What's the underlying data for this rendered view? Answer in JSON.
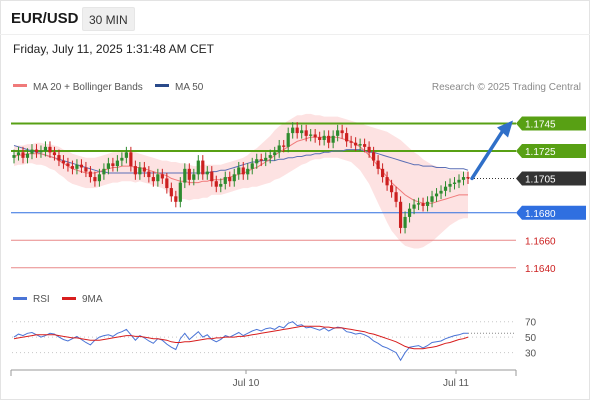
{
  "header": {
    "symbol": "EUR/USD",
    "timeframe": "30 MIN",
    "datetime": "Friday, July 11, 2025 1:31:48 AM CET"
  },
  "legend": {
    "ma20_label": "MA 20 + Bollinger Bands",
    "ma50_label": "MA 50",
    "credit": "Research © 2025 Trading Central",
    "rsi_label": "RSI",
    "ma9_label": "9MA"
  },
  "colors": {
    "up": "#2e8b2e",
    "down": "#cc2020",
    "bollinger_fill": "#fde2e2",
    "ma20": "#f07a7a",
    "ma50": "#5b6fb5",
    "resistance": "#58a014",
    "support": "#2f6fe0",
    "target_line": "#e88888",
    "target_text": "#cc2020",
    "current": "#333333",
    "arrow": "#2f6fc8",
    "rsi": "#4a74d6",
    "ma9": "#d81e1e"
  },
  "chart_data": [
    {
      "type": "candlestick",
      "title": "",
      "ylim": [
        1.1618,
        1.1765
      ],
      "x_ticks": [
        "Jul 10",
        "Jul 11"
      ],
      "levels": [
        {
          "value": 1.1745,
          "label": "1.1745",
          "kind": "resistance"
        },
        {
          "value": 1.1725,
          "label": "1.1725",
          "kind": "resistance"
        },
        {
          "value": 1.1705,
          "label": "1.1705",
          "kind": "current"
        },
        {
          "value": 1.168,
          "label": "1.1680",
          "kind": "support"
        },
        {
          "value": 1.166,
          "label": "1.1660",
          "kind": "target"
        },
        {
          "value": 1.164,
          "label": "1.1640",
          "kind": "target"
        }
      ],
      "projection": {
        "from": 1.1705,
        "to": 1.1745
      },
      "close": [
        1.1722,
        1.1724,
        1.172,
        1.1723,
        1.1726,
        1.1724,
        1.1725,
        1.1728,
        1.1724,
        1.1722,
        1.1718,
        1.1716,
        1.1714,
        1.1712,
        1.1715,
        1.1713,
        1.171,
        1.1706,
        1.1703,
        1.1708,
        1.1712,
        1.1716,
        1.1714,
        1.1718,
        1.172,
        1.1724,
        1.1714,
        1.1708,
        1.1713,
        1.171,
        1.1706,
        1.1703,
        1.1708,
        1.1705,
        1.1698,
        1.1692,
        1.1688,
        1.1702,
        1.1712,
        1.1704,
        1.1708,
        1.1718,
        1.1708,
        1.171,
        1.1703,
        1.1699,
        1.1701,
        1.1706,
        1.1703,
        1.1708,
        1.1713,
        1.1708,
        1.1712,
        1.1716,
        1.1719,
        1.1718,
        1.172,
        1.1722,
        1.1724,
        1.1729,
        1.1728,
        1.1738,
        1.1742,
        1.1738,
        1.174,
        1.1736,
        1.1737,
        1.1735,
        1.1733,
        1.1736,
        1.1731,
        1.1736,
        1.174,
        1.1738,
        1.1732,
        1.1731,
        1.1729,
        1.173,
        1.1728,
        1.1724,
        1.1718,
        1.1712,
        1.1706,
        1.17,
        1.1695,
        1.1688,
        1.1669,
        1.1677,
        1.1683,
        1.1686,
        1.1687,
        1.1685,
        1.1688,
        1.1692,
        1.1694,
        1.1696,
        1.1699,
        1.1701,
        1.1702,
        1.1704,
        1.1706,
        1.1705
      ],
      "ma20": [
        1.1721,
        1.1722,
        1.1722,
        1.1723,
        1.1723,
        1.1723,
        1.1723,
        1.1722,
        1.1721,
        1.172,
        1.1718,
        1.1716,
        1.1714,
        1.1712,
        1.1711,
        1.171,
        1.1709,
        1.1709,
        1.1709,
        1.171,
        1.1711,
        1.1712,
        1.1713,
        1.1713,
        1.1714,
        1.1714,
        1.1714,
        1.1713,
        1.1713,
        1.1712,
        1.1711,
        1.171,
        1.1709,
        1.1708,
        1.1707,
        1.1705,
        1.1704,
        1.1703,
        1.1703,
        1.1702,
        1.1702,
        1.1702,
        1.1703,
        1.1703,
        1.1704,
        1.1704,
        1.1704,
        1.1705,
        1.1706,
        1.1707,
        1.1708,
        1.1709,
        1.171,
        1.1712,
        1.1713,
        1.1715,
        1.1717,
        1.1719,
        1.1722,
        1.1724,
        1.1726,
        1.1728,
        1.173,
        1.1732,
        1.1733,
        1.1734,
        1.1735,
        1.1735,
        1.1735,
        1.1735,
        1.1735,
        1.1735,
        1.1735,
        1.1734,
        1.1733,
        1.1732,
        1.173,
        1.1728,
        1.1725,
        1.1722,
        1.1718,
        1.1714,
        1.171,
        1.1706,
        1.1702,
        1.1699,
        1.1696,
        1.1693,
        1.1691,
        1.1689,
        1.1688,
        1.1687,
        1.1687,
        1.1687,
        1.1688,
        1.1689,
        1.169,
        1.1691,
        1.1692,
        1.1693,
        1.1693,
        1.1693
      ],
      "bollinger_width": [
        0.0007,
        0.0007,
        0.0007,
        0.0007,
        0.0007,
        0.0008,
        0.0008,
        0.0008,
        0.0009,
        0.0009,
        0.001,
        0.001,
        0.0011,
        0.0011,
        0.0011,
        0.0011,
        0.0011,
        0.0011,
        0.0011,
        0.0011,
        0.0011,
        0.0011,
        0.0011,
        0.0011,
        0.0011,
        0.0011,
        0.0011,
        0.0011,
        0.001,
        0.001,
        0.001,
        0.001,
        0.001,
        0.001,
        0.0011,
        0.0012,
        0.0013,
        0.0013,
        0.0013,
        0.0013,
        0.0012,
        0.0012,
        0.0012,
        0.0012,
        0.0011,
        0.0011,
        0.0011,
        0.0011,
        0.0011,
        0.0011,
        0.0011,
        0.0011,
        0.0012,
        0.0013,
        0.0014,
        0.0015,
        0.0016,
        0.0017,
        0.0018,
        0.0019,
        0.0019,
        0.0019,
        0.0019,
        0.0019,
        0.0018,
        0.0018,
        0.0017,
        0.0016,
        0.0016,
        0.0015,
        0.0015,
        0.0015,
        0.0015,
        0.0015,
        0.0015,
        0.0015,
        0.0016,
        0.0017,
        0.0019,
        0.0021,
        0.0024,
        0.0027,
        0.003,
        0.0033,
        0.0035,
        0.0036,
        0.0037,
        0.0037,
        0.0036,
        0.0035,
        0.0034,
        0.0032,
        0.003,
        0.0028,
        0.0026,
        0.0024,
        0.0022,
        0.002,
        0.0019,
        0.0018,
        0.0017,
        0.0017
      ],
      "ma50": [
        1.1729,
        1.1728,
        1.1727,
        1.1726,
        1.1725,
        1.1724,
        1.1723,
        1.1722,
        1.1721,
        1.172,
        1.1719,
        1.1718,
        1.1717,
        1.1716,
        1.1715,
        1.1714,
        1.1713,
        1.1712,
        1.1711,
        1.171,
        1.171,
        1.1709,
        1.1709,
        1.1709,
        1.1709,
        1.1709,
        1.1709,
        1.1709,
        1.1709,
        1.1709,
        1.1709,
        1.1709,
        1.1709,
        1.1709,
        1.1709,
        1.1709,
        1.1709,
        1.1709,
        1.1709,
        1.1709,
        1.1709,
        1.1709,
        1.1709,
        1.1709,
        1.171,
        1.171,
        1.1711,
        1.1711,
        1.1712,
        1.1713,
        1.1714,
        1.1715,
        1.1716,
        1.1717,
        1.1717,
        1.1718,
        1.1718,
        1.1718,
        1.1718,
        1.1719,
        1.1719,
        1.172,
        1.172,
        1.1721,
        1.1721,
        1.1722,
        1.1722,
        1.1723,
        1.1723,
        1.1724,
        1.1724,
        1.1725,
        1.1725,
        1.1725,
        1.1726,
        1.1726,
        1.1726,
        1.1726,
        1.1725,
        1.1724,
        1.1724,
        1.1723,
        1.1722,
        1.1721,
        1.172,
        1.1719,
        1.1718,
        1.1717,
        1.1716,
        1.1715,
        1.1715,
        1.1714,
        1.1714,
        1.1714,
        1.1713,
        1.1713,
        1.1713,
        1.1712,
        1.1712,
        1.1712,
        1.1712,
        1.1711
      ]
    },
    {
      "type": "line",
      "title": "RSI",
      "ylim": [
        10,
        80
      ],
      "y_ticks": [
        70,
        50,
        30
      ],
      "current_level": 55,
      "series": [
        {
          "name": "RSI",
          "values": [
            50,
            54,
            52,
            55,
            56,
            53,
            50,
            52,
            55,
            54,
            50,
            47,
            45,
            48,
            51,
            47,
            43,
            40,
            46,
            50,
            52,
            53,
            51,
            55,
            57,
            60,
            53,
            46,
            52,
            49,
            45,
            42,
            48,
            46,
            41,
            37,
            34,
            48,
            55,
            47,
            52,
            57,
            50,
            53,
            47,
            44,
            47,
            52,
            50,
            53,
            56,
            52,
            55,
            58,
            60,
            58,
            61,
            62,
            60,
            64,
            62,
            68,
            70,
            65,
            66,
            62,
            63,
            61,
            59,
            62,
            58,
            61,
            63,
            62,
            57,
            56,
            54,
            55,
            53,
            50,
            45,
            42,
            38,
            36,
            33,
            30,
            20,
            30,
            37,
            38,
            39,
            36,
            39,
            43,
            44,
            45,
            48,
            50,
            52,
            53,
            55,
            55
          ]
        },
        {
          "name": "9MA",
          "values": [
            48,
            49,
            50,
            51,
            52,
            53,
            53,
            53,
            53,
            53,
            52,
            51,
            50,
            49,
            49,
            48,
            47,
            46,
            46,
            46,
            47,
            48,
            49,
            50,
            51,
            52,
            52,
            51,
            51,
            50,
            49,
            48,
            48,
            47,
            46,
            44,
            43,
            43,
            44,
            44,
            45,
            46,
            47,
            48,
            48,
            49,
            49,
            50,
            50,
            50,
            51,
            51,
            52,
            53,
            54,
            55,
            56,
            57,
            58,
            59,
            60,
            61,
            62,
            63,
            64,
            64,
            64,
            64,
            64,
            63,
            63,
            62,
            62,
            62,
            61,
            60,
            59,
            58,
            57,
            55,
            54,
            52,
            50,
            48,
            46,
            44,
            41,
            38,
            36,
            35,
            35,
            35,
            36,
            37,
            38,
            40,
            42,
            43,
            45,
            47,
            48,
            50
          ]
        }
      ]
    }
  ]
}
